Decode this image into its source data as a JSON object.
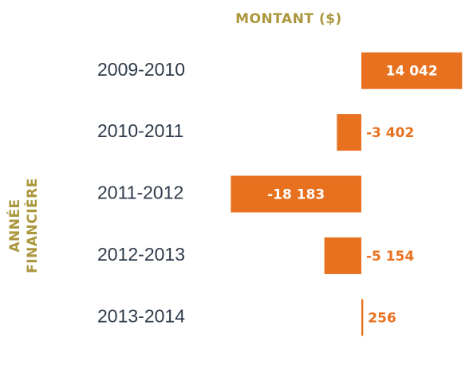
{
  "chart_data": {
    "type": "hbar",
    "xlabel": "MONTANT ($)",
    "ylabel": [
      "ANNÉE",
      "FINANCIÈRE"
    ],
    "categories": [
      "2009-2010",
      "2010-2011",
      "2011-2012",
      "2012-2013",
      "2013-2014"
    ],
    "values": [
      14042,
      -3402,
      -18183,
      -5154,
      256
    ],
    "value_labels": [
      "14 042",
      "-3 402",
      "-18 183",
      "-5 154",
      "256"
    ],
    "color": "#e8711f",
    "xlim": [
      -19000,
      15000
    ]
  }
}
